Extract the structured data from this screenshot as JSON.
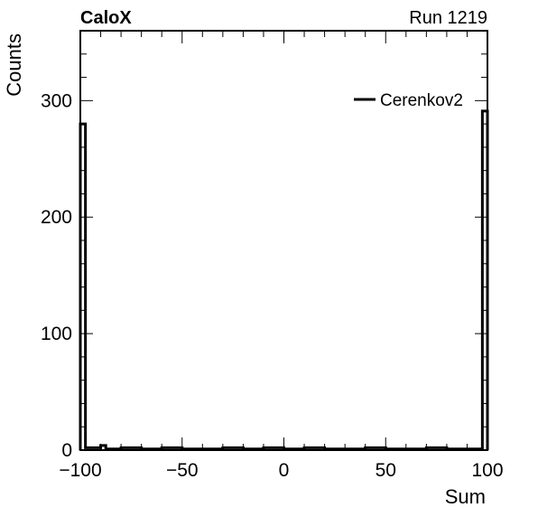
{
  "header": {
    "left_label": "CaloX",
    "right_label": "Run 1219"
  },
  "chart_data": {
    "type": "histogram",
    "xlabel": "Sum",
    "ylabel": "Counts",
    "xlim": [
      -100,
      100
    ],
    "ylim": [
      0,
      360
    ],
    "x_ticks": [
      -100,
      -50,
      0,
      50,
      100
    ],
    "x_tick_labels": [
      "−100",
      "−50",
      "0",
      "50",
      "100"
    ],
    "y_ticks": [
      0,
      100,
      200,
      300
    ],
    "y_tick_labels": [
      "0",
      "100",
      "200",
      "300"
    ],
    "grid": false,
    "legend_position": "top-right",
    "series": [
      {
        "name": "Cerenkov2",
        "color": "#000000",
        "bins": [
          {
            "x0": -100,
            "x1": -97.5,
            "count": 280
          },
          {
            "x0": -97.5,
            "x1": -90,
            "count": 2
          },
          {
            "x0": -90,
            "x1": -87.5,
            "count": 4
          },
          {
            "x0": -87.5,
            "x1": -80,
            "count": 1
          },
          {
            "x0": -80,
            "x1": -70,
            "count": 2
          },
          {
            "x0": -70,
            "x1": -60,
            "count": 1
          },
          {
            "x0": -60,
            "x1": -50,
            "count": 2
          },
          {
            "x0": -50,
            "x1": -40,
            "count": 1
          },
          {
            "x0": -40,
            "x1": -30,
            "count": 1
          },
          {
            "x0": -30,
            "x1": -20,
            "count": 2
          },
          {
            "x0": -20,
            "x1": -10,
            "count": 1
          },
          {
            "x0": -10,
            "x1": 0,
            "count": 2
          },
          {
            "x0": 0,
            "x1": 10,
            "count": 1
          },
          {
            "x0": 10,
            "x1": 20,
            "count": 2
          },
          {
            "x0": 20,
            "x1": 30,
            "count": 1
          },
          {
            "x0": 30,
            "x1": 40,
            "count": 1
          },
          {
            "x0": 40,
            "x1": 50,
            "count": 2
          },
          {
            "x0": 50,
            "x1": 60,
            "count": 1
          },
          {
            "x0": 60,
            "x1": 70,
            "count": 1
          },
          {
            "x0": 70,
            "x1": 80,
            "count": 2
          },
          {
            "x0": 80,
            "x1": 90,
            "count": 1
          },
          {
            "x0": 90,
            "x1": 97.5,
            "count": 1
          },
          {
            "x0": 97.5,
            "x1": 100,
            "count": 291
          }
        ]
      }
    ]
  }
}
